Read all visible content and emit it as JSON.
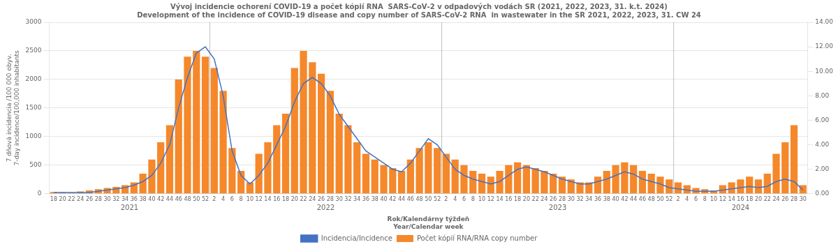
{
  "chart_data": {
    "type": "bar",
    "title": "Vývoj incidencie ochorení COVID-19 a počet kópií RNA  SARS‑CoV‑2 v odpadových vodách SR (2021, 2022, 2023, 31. k.t. 2024)\nDevelopment of the incidence of COVID-19 disease and copy number of SARS-CoV-2 RNA  in wastewater in the SR 2021, 2022, 2023, 31. CW 24",
    "xlabel": "Rok/Kalendárny týždeň\nYear/Calendar week",
    "ylabel": "7 dňová incidencia /100 000 obyv.\n7-day incidence/100,000 inhabitants",
    "categories": [
      "18",
      "20",
      "22",
      "24",
      "26",
      "28",
      "30",
      "32",
      "34",
      "36",
      "38",
      "40",
      "42",
      "44",
      "46",
      "48",
      "50",
      "52",
      "2",
      "4",
      "6",
      "8",
      "10",
      "12",
      "14",
      "16",
      "18",
      "20",
      "22",
      "24",
      "26",
      "28",
      "30",
      "32",
      "34",
      "36",
      "38",
      "40",
      "42",
      "44",
      "46",
      "48",
      "50",
      "52",
      "2",
      "4",
      "6",
      "8",
      "10",
      "12",
      "14",
      "16",
      "18",
      "20",
      "22",
      "24",
      "26",
      "28",
      "30",
      "32",
      "34",
      "36",
      "38",
      "40",
      "42",
      "44",
      "46",
      "48",
      "50",
      "52",
      "2",
      "4",
      "6",
      "8",
      "10",
      "12",
      "14",
      "16",
      "18",
      "20",
      "22",
      "24",
      "26",
      "28",
      "30"
    ],
    "series": [
      {
        "name": "Počet kópií RNA/RNA copy number",
        "type": "bar",
        "color": "#F5882A",
        "values": [
          30,
          25,
          20,
          40,
          60,
          80,
          100,
          120,
          150,
          200,
          350,
          600,
          900,
          1200,
          2000,
          2400,
          2500,
          2400,
          2200,
          1800,
          800,
          400,
          200,
          700,
          900,
          1200,
          1400,
          2200,
          2500,
          2300,
          2100,
          1800,
          1400,
          1200,
          900,
          700,
          600,
          500,
          450,
          400,
          600,
          800,
          900,
          800,
          700,
          600,
          500,
          400,
          350,
          300,
          400,
          500,
          550,
          500,
          450,
          400,
          350,
          300,
          250,
          200,
          200,
          300,
          400,
          500,
          550,
          500,
          400,
          350,
          300,
          250,
          200,
          150,
          100,
          80,
          60,
          150,
          200,
          250,
          300,
          250,
          350,
          700,
          900,
          1200,
          150
        ]
      },
      {
        "name": "Incidencia/Incidence",
        "type": "line",
        "color": "#4472C4",
        "axis": "y2",
        "values": [
          0.1,
          0.1,
          0.1,
          0.1,
          0.1,
          0.2,
          0.3,
          0.4,
          0.5,
          0.7,
          1.0,
          1.5,
          2.5,
          4.0,
          7.0,
          9.5,
          11.5,
          12.0,
          11.0,
          8.0,
          3.5,
          1.5,
          0.8,
          1.5,
          2.5,
          4.0,
          5.5,
          7.5,
          9.0,
          9.5,
          9.0,
          8.0,
          6.5,
          5.5,
          4.5,
          3.5,
          3.0,
          2.5,
          2.0,
          1.8,
          2.5,
          3.5,
          4.5,
          4.0,
          3.0,
          2.0,
          1.5,
          1.2,
          1.0,
          0.8,
          1.0,
          1.5,
          2.0,
          2.2,
          2.0,
          1.8,
          1.5,
          1.2,
          1.0,
          0.8,
          0.8,
          1.0,
          1.2,
          1.5,
          1.8,
          1.6,
          1.2,
          1.0,
          0.8,
          0.5,
          0.4,
          0.3,
          0.2,
          0.2,
          0.2,
          0.3,
          0.4,
          0.5,
          0.6,
          0.5,
          0.6,
          1.0,
          1.2,
          1.0,
          0.3
        ]
      }
    ],
    "ylim": [
      0,
      3000
    ],
    "yticks": [
      0,
      500,
      1000,
      1500,
      2000,
      2500,
      3000
    ],
    "y2lim": [
      0,
      14
    ],
    "y2ticks": [
      {
        "value": 0,
        "label": "0.00"
      },
      {
        "value": 2,
        "label": "2.00"
      },
      {
        "value": 4,
        "label": "4.00"
      },
      {
        "value": 6,
        "label": "6.00"
      },
      {
        "value": 8,
        "label": "8.00"
      },
      {
        "value": 10,
        "label": "10.00"
      },
      {
        "value": 12,
        "label": "12.00"
      },
      {
        "value": 14,
        "label": "14.00"
      }
    ],
    "grid": true,
    "legend": "bottom",
    "annotations": [
      {
        "text": "2021",
        "start": 0,
        "end": 17
      },
      {
        "text": "2022",
        "start": 18,
        "end": 43
      },
      {
        "text": "2023",
        "start": 44,
        "end": 69
      },
      {
        "text": "2024",
        "start": 70,
        "end": 84
      }
    ]
  }
}
